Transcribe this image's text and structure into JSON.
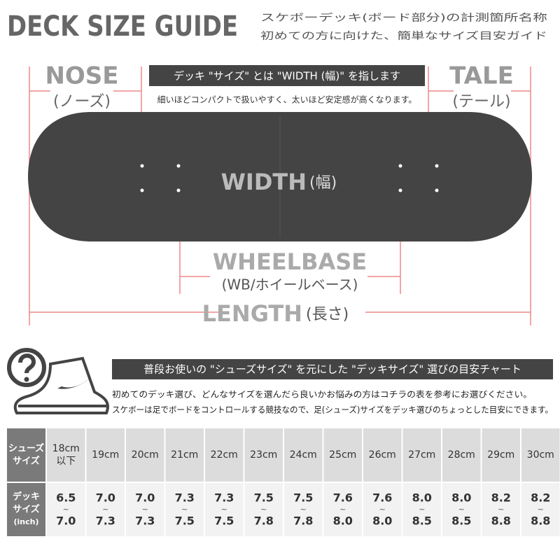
{
  "header": {
    "title": "DECK SIZE GUIDE",
    "subtitle": [
      "スケボーデッキ(ボード部分)の計測箇所名称",
      "初めての方に向けた、簡単なサイズ目安ガイド"
    ]
  },
  "diagram": {
    "nose": "NOSE",
    "nose_sub": "(ノーズ)",
    "tale": "TALE",
    "tale_sub": "(テール)",
    "banner": "デッキ \"サイズ\" とは \"WIDTH (幅)\" を指します",
    "note": "細いほどコンパクトで扱いやすく、太いほど安定感が高くなります。",
    "width": "WIDTH",
    "width_sub": "(幅)",
    "wheelbase": "WHEELBASE",
    "wheelbase_sub": "(WB/ホイールベース)",
    "length": "LENGTH",
    "length_sub": "(長さ)"
  },
  "chart_section": {
    "banner": "普段お使いの \"シューズサイズ\" を元にした \"デッキサイズ\" 選びの目安チャート",
    "notes": [
      "初めてのデッキ選び、どんなサイズを選んだら良いかお悩みの方はコチラの表を参考にお選びください。",
      "スケボーは足でボードをコントロールする競技なので、足(シューズ)サイズをデッキ選びのちょっとした目安にできます。"
    ]
  },
  "table": {
    "row_headers": [
      [
        "シューズ",
        "サイズ"
      ],
      [
        "デッキ",
        "サイズ",
        "(inch)"
      ]
    ],
    "shoe_sizes": [
      [
        "18cm",
        "以下"
      ],
      [
        "19cm"
      ],
      [
        "20cm"
      ],
      [
        "21cm"
      ],
      [
        "22cm"
      ],
      [
        "23cm"
      ],
      [
        "24cm"
      ],
      [
        "25cm"
      ],
      [
        "26cm"
      ],
      [
        "27cm"
      ],
      [
        "28cm"
      ],
      [
        "29cm"
      ],
      [
        "30cm"
      ]
    ],
    "separator": "~",
    "deck_sizes": [
      {
        "min": "6.5",
        "max": "7.0"
      },
      {
        "min": "7.0",
        "max": "7.3"
      },
      {
        "min": "7.0",
        "max": "7.3"
      },
      {
        "min": "7.3",
        "max": "7.5"
      },
      {
        "min": "7.3",
        "max": "7.5"
      },
      {
        "min": "7.5",
        "max": "7.8"
      },
      {
        "min": "7.5",
        "max": "7.8"
      },
      {
        "min": "7.6",
        "max": "8.0"
      },
      {
        "min": "7.6",
        "max": "8.0"
      },
      {
        "min": "8.0",
        "max": "8.5"
      },
      {
        "min": "8.0",
        "max": "8.5"
      },
      {
        "min": "8.2",
        "max": "8.8"
      },
      {
        "min": "8.2",
        "max": "8.8"
      }
    ]
  }
}
